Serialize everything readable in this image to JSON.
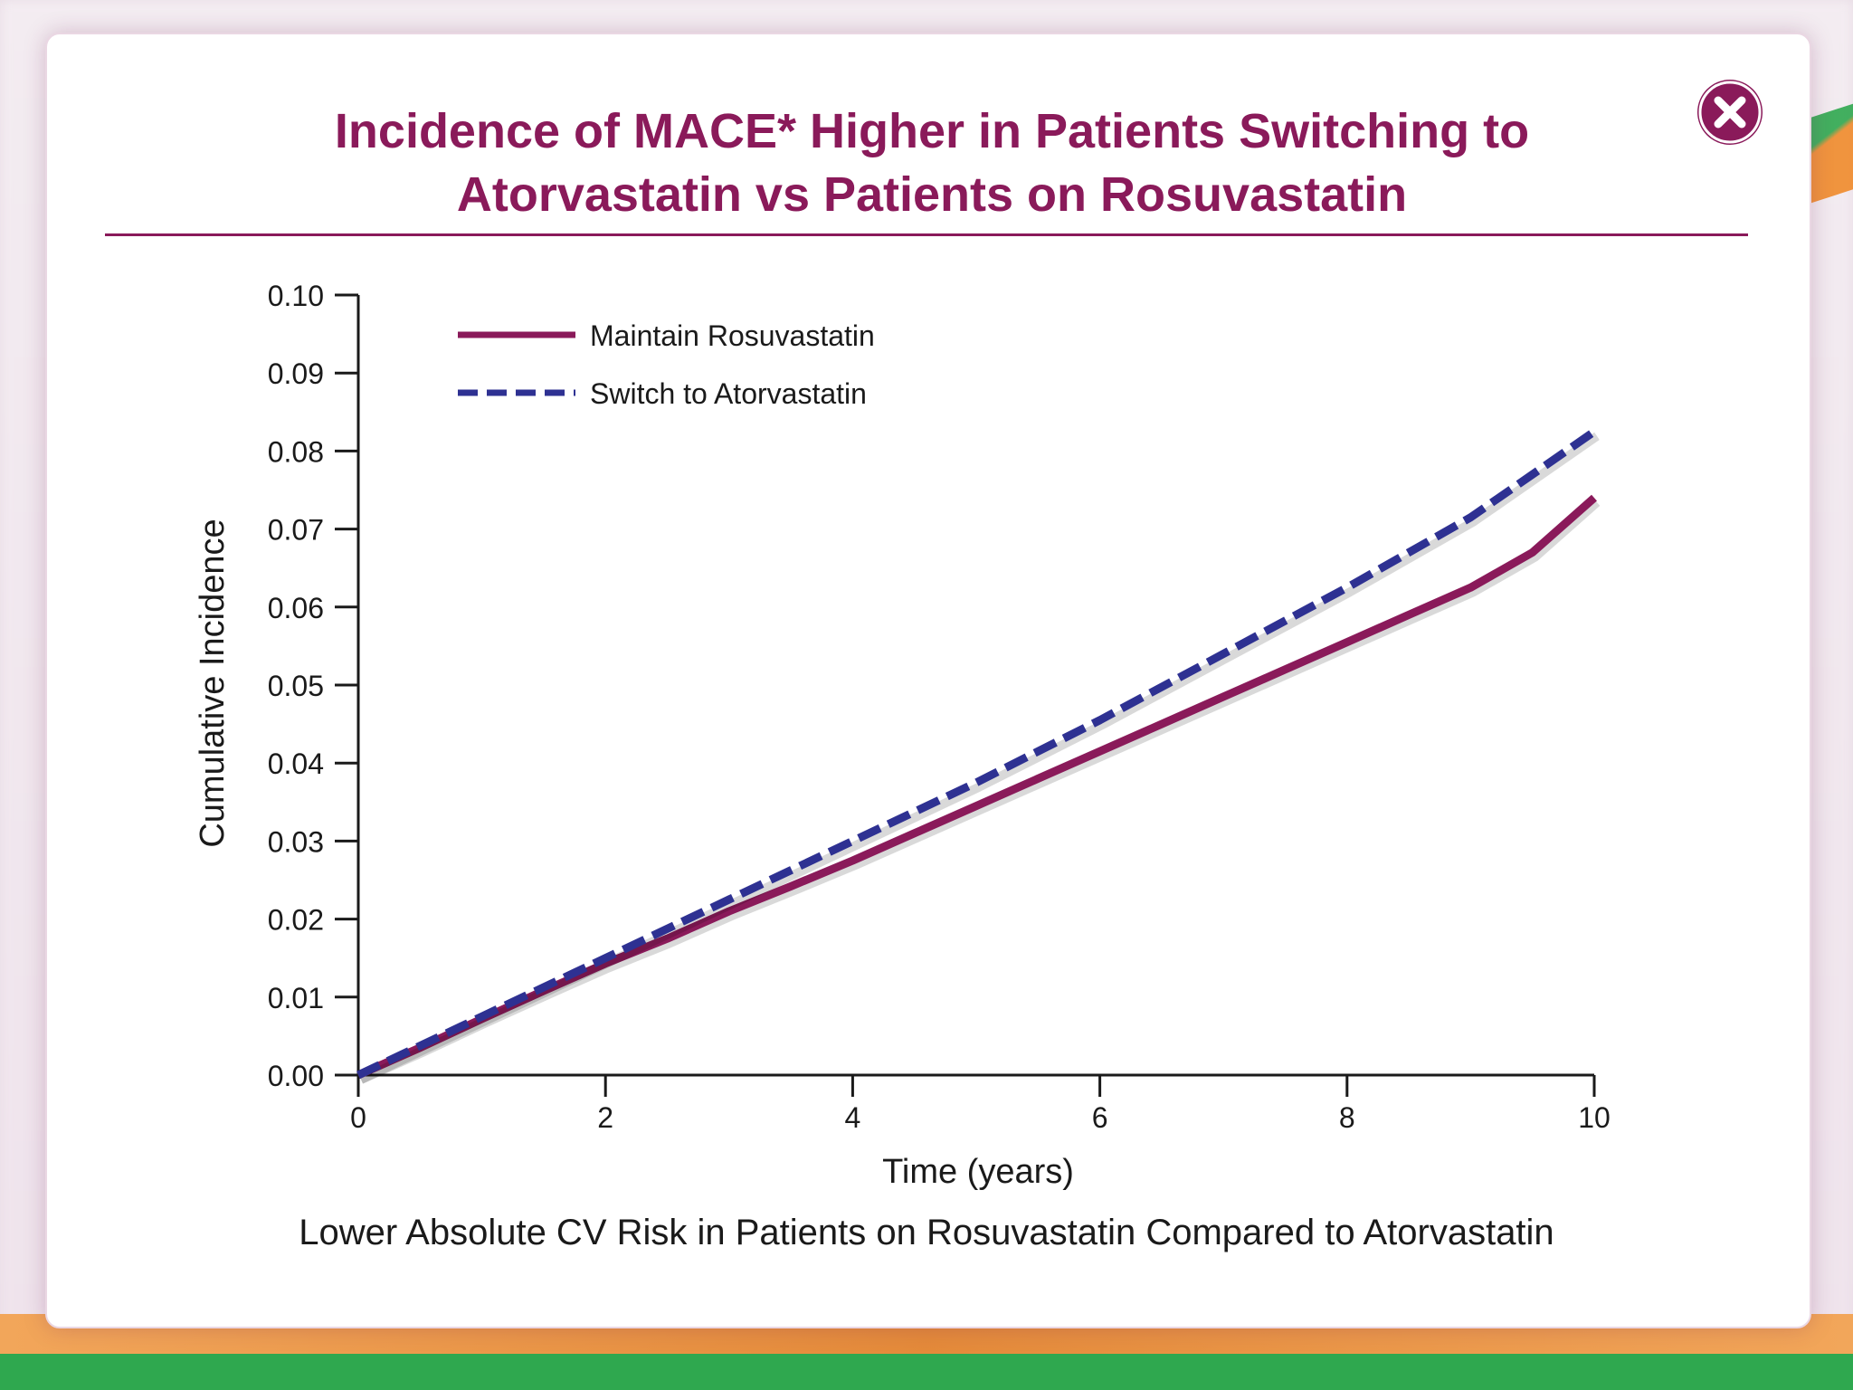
{
  "modal": {
    "title_line1": "Incidence of MACE* Higher in Patients Switching to",
    "title_line2": "Atorvastatin vs Patients on Rosuvastatin",
    "footer": "Lower Absolute CV Risk in Patients on Rosuvastatin Compared to Atorvastatin",
    "close_icon": "close-icon",
    "accent_color": "#8a1a5a"
  },
  "chart_data": {
    "type": "line",
    "xlabel": "Time (years)",
    "ylabel": "Cumulative Incidence",
    "xlim": [
      0,
      10
    ],
    "ylim": [
      0,
      0.1
    ],
    "x_ticks": [
      "0",
      "2",
      "4",
      "6",
      "8",
      "10"
    ],
    "y_ticks": [
      "0.00",
      "0.01",
      "0.02",
      "0.03",
      "0.04",
      "0.05",
      "0.06",
      "0.07",
      "0.08",
      "0.09",
      "0.10"
    ],
    "legend_position": "top-left",
    "series": [
      {
        "name": "Maintain Rosuvastatin",
        "color": "#8a1a5a",
        "style": "solid",
        "x": [
          0,
          0.5,
          1,
          1.5,
          2,
          2.5,
          3,
          3.5,
          4,
          4.5,
          5,
          5.5,
          6,
          6.5,
          7,
          7.5,
          8,
          8.5,
          9,
          9.5,
          10
        ],
        "y": [
          0,
          0.0035,
          0.0072,
          0.0108,
          0.0143,
          0.0175,
          0.021,
          0.0242,
          0.0275,
          0.031,
          0.0345,
          0.038,
          0.0415,
          0.045,
          0.0485,
          0.052,
          0.0555,
          0.059,
          0.0625,
          0.067,
          0.074
        ]
      },
      {
        "name": "Switch to Atorvastatin",
        "color": "#2e3192",
        "style": "dashed",
        "x": [
          0,
          1,
          2,
          3,
          4,
          5,
          6,
          7,
          8,
          9,
          10
        ],
        "y": [
          0,
          0.0075,
          0.015,
          0.0225,
          0.03,
          0.0375,
          0.0455,
          0.054,
          0.0625,
          0.0715,
          0.0825
        ]
      }
    ]
  }
}
